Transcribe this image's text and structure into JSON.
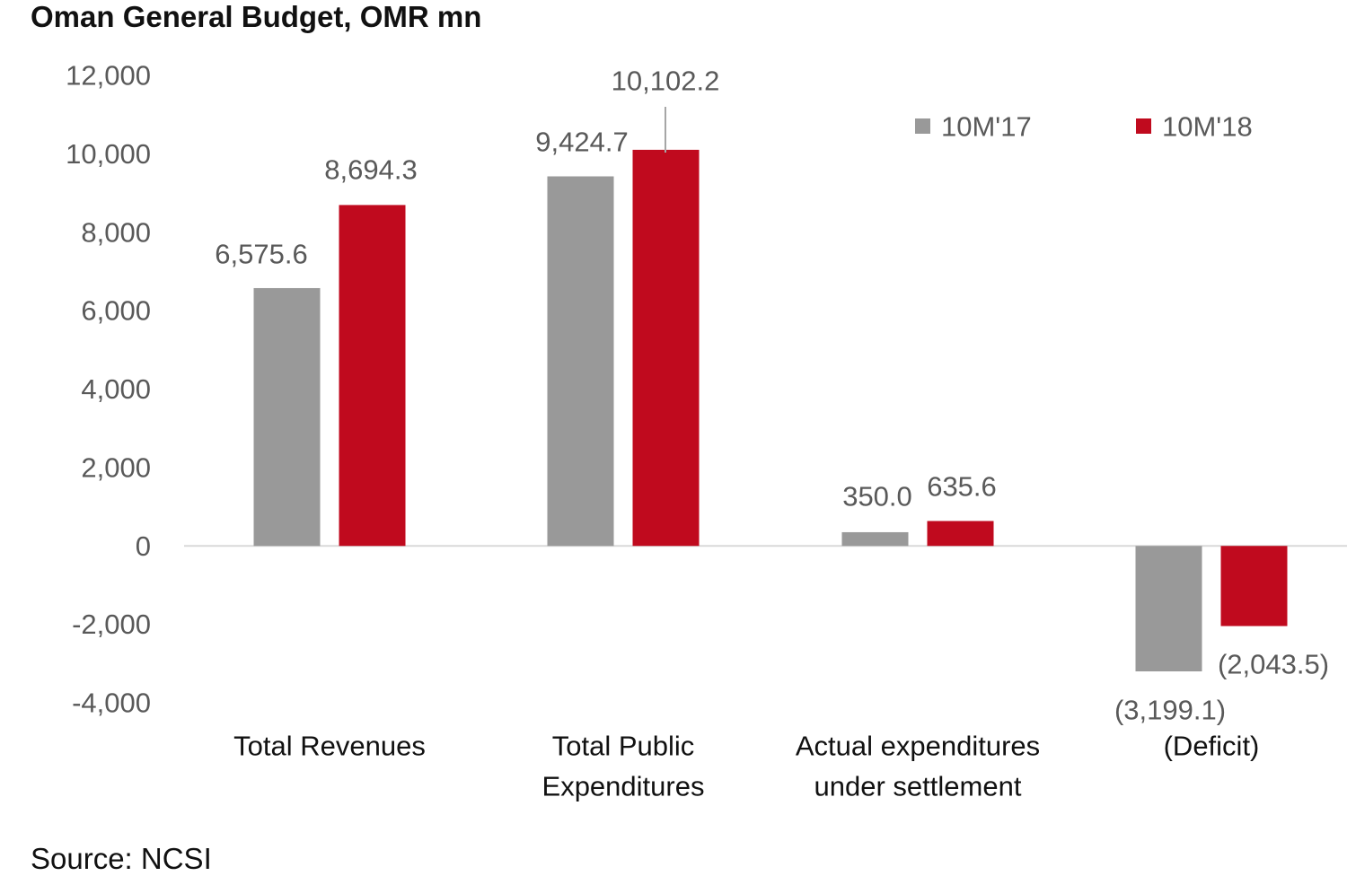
{
  "title": "Oman General Budget, OMR mn",
  "source": "Source: NCSI",
  "colors": {
    "series_2017": "#999999",
    "series_2018": "#c00a1e",
    "axis": "#d9d9d9",
    "tick_text": "#595959",
    "category_text": "#111111"
  },
  "chart_data": {
    "type": "bar",
    "title": "Oman General Budget, OMR mn",
    "xlabel": "",
    "ylabel": "",
    "ylim": [
      -4000,
      12000
    ],
    "yticks": [
      12000,
      10000,
      8000,
      6000,
      4000,
      2000,
      0,
      -2000,
      -4000
    ],
    "ytick_labels": [
      "12,000",
      "10,000",
      "8,000",
      "6,000",
      "4,000",
      "2,000",
      "0",
      "-2,000",
      "-4,000"
    ],
    "grid": false,
    "legend_position": "top-right",
    "categories": [
      [
        "Total Revenues"
      ],
      [
        "Total Public",
        "Expenditures"
      ],
      [
        "Actual expenditures",
        "under settlement"
      ],
      [
        "(Deficit)"
      ]
    ],
    "series": [
      {
        "name": "10M'17",
        "values": [
          6575.6,
          9424.7,
          350.0,
          -3199.1
        ],
        "labels": [
          "6,575.6",
          "9,424.7",
          "350.0",
          "(3,199.1)"
        ]
      },
      {
        "name": "10M'18",
        "values": [
          8694.3,
          10102.2,
          635.6,
          -2043.5
        ],
        "labels": [
          "8,694.3",
          "10,102.2",
          "635.6",
          "(2,043.5)"
        ]
      }
    ]
  }
}
